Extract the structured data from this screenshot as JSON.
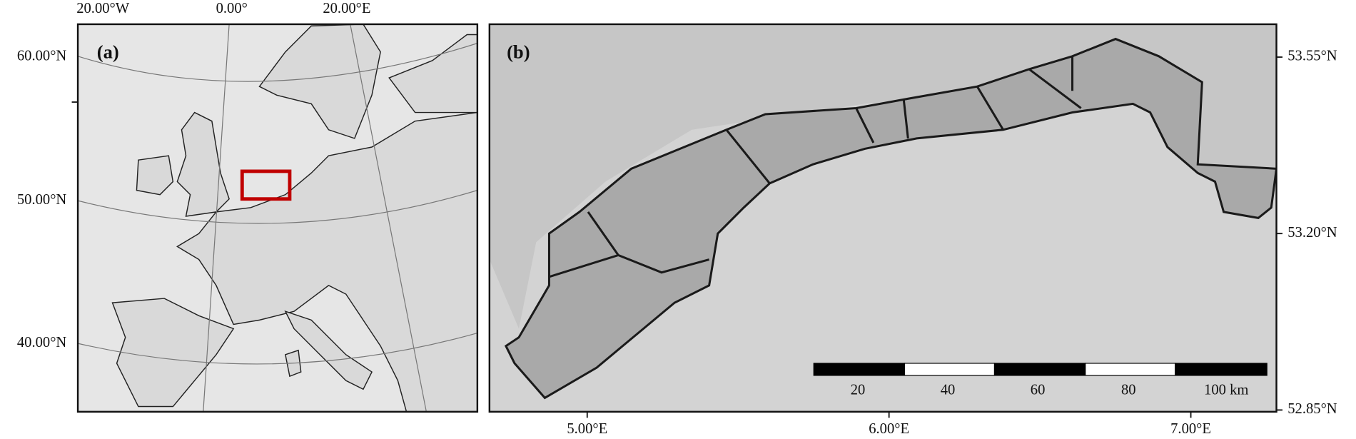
{
  "panels": [
    {
      "label": "(a)",
      "x_ticks": [
        "20.00°W",
        "0.00°",
        "20.00°E"
      ],
      "y_ticks": [
        "60.00°N",
        "50.00°N",
        "40.00°N"
      ]
    },
    {
      "label": "(b)",
      "x_ticks": [
        "5.00°E",
        "6.00°E",
        "7.00°E"
      ],
      "y_ticks": [
        "53.55°N",
        "53.20°N",
        "52.85°N"
      ],
      "scale_bar": [
        "20",
        "40",
        "60",
        "80",
        "100 km"
      ]
    }
  ]
}
